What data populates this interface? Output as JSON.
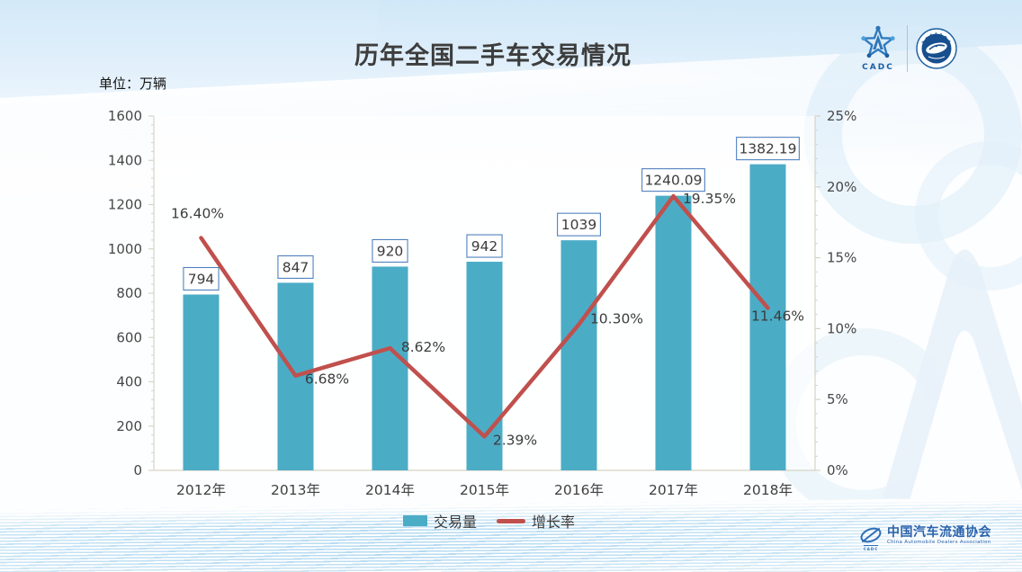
{
  "header": {
    "title": "历年全国二手车交易情况",
    "unit_label": "单位：万辆"
  },
  "logos": {
    "cadc_acronym": "CADC",
    "association_cn": "中国汽车流通协会",
    "association_en": "China Automobile Dealers Association"
  },
  "chart_data": {
    "type": "bar+line",
    "title": "历年全国二手车交易情况",
    "categories": [
      "2012年",
      "2013年",
      "2014年",
      "2015年",
      "2016年",
      "2017年",
      "2018年"
    ],
    "series": [
      {
        "name": "交易量",
        "type": "bar",
        "axis": "left",
        "color": "#4BACC6",
        "values": [
          794,
          847,
          920,
          942,
          1039,
          1240.09,
          1382.19
        ],
        "labels": [
          "794",
          "847",
          "920",
          "942",
          "1039",
          "1240.09",
          "1382.19"
        ],
        "label_box_border": "#4F81BD"
      },
      {
        "name": "增长率",
        "type": "line",
        "axis": "right",
        "color": "#C0504D",
        "values": [
          16.4,
          6.68,
          8.62,
          2.39,
          10.3,
          19.35,
          11.46
        ],
        "labels": [
          "16.40%",
          "6.68%",
          "8.62%",
          "2.39%",
          "10.30%",
          "19.35%",
          "11.46%"
        ],
        "label_offsets": [
          [
            -4,
            -27
          ],
          [
            35,
            4
          ],
          [
            37,
            -1
          ],
          [
            34,
            4
          ],
          [
            42,
            -6
          ],
          [
            40,
            3
          ],
          [
            11,
            9
          ]
        ]
      }
    ],
    "left_axis": {
      "min": 0,
      "max": 1600,
      "tick_step": 200,
      "ticks": [
        "0",
        "200",
        "400",
        "600",
        "800",
        "1000",
        "1200",
        "1400",
        "1600"
      ]
    },
    "right_axis": {
      "min": 0,
      "max": 25,
      "tick_step": 5,
      "ticks": [
        "0%",
        "5%",
        "10%",
        "15%",
        "20%",
        "25%"
      ]
    },
    "grid": false,
    "legend_position": "bottom",
    "legend": [
      {
        "label": "交易量",
        "type": "bar"
      },
      {
        "label": "增长率",
        "type": "line"
      }
    ]
  }
}
